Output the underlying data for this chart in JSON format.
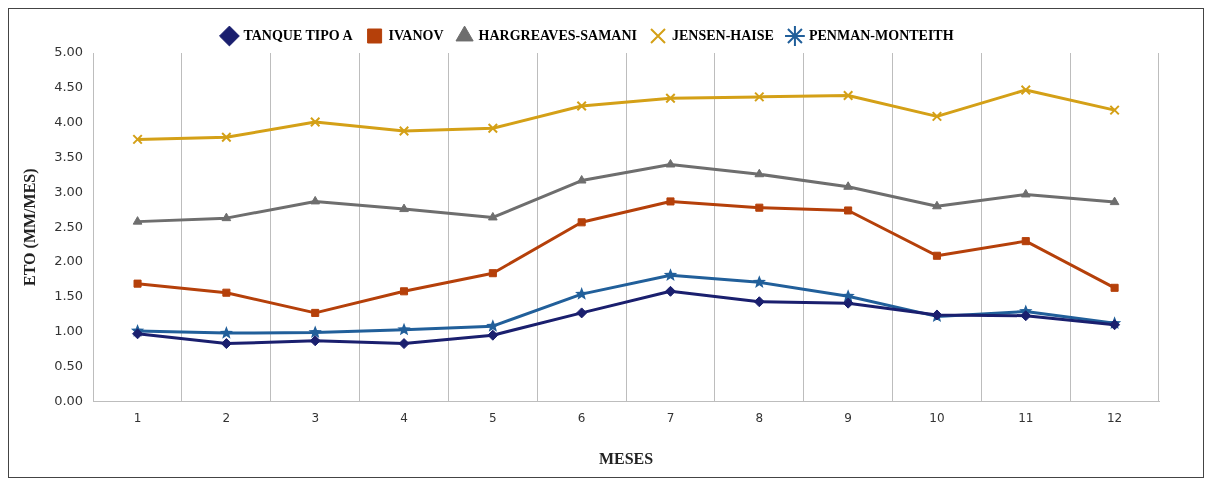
{
  "chart_data": {
    "type": "line",
    "xlabel": "MESES",
    "ylabel": "ETO (MM/MES)",
    "categories": [
      "1",
      "2",
      "3",
      "4",
      "5",
      "6",
      "7",
      "8",
      "9",
      "10",
      "11",
      "12"
    ],
    "ylim": [
      0,
      5
    ],
    "yticks": [
      {
        "value": 0,
        "label": "0.00"
      },
      {
        "value": 0.5,
        "label": "0.50"
      },
      {
        "value": 1,
        "label": "1.00"
      },
      {
        "value": 1.5,
        "label": "1.50"
      },
      {
        "value": 2,
        "label": "2.00"
      },
      {
        "value": 2.5,
        "label": "2.50"
      },
      {
        "value": 3,
        "label": "3.00"
      },
      {
        "value": 3.5,
        "label": "3.50"
      },
      {
        "value": 4,
        "label": "4.00"
      },
      {
        "value": 4.5,
        "label": "4.50"
      },
      {
        "value": 5,
        "label": "5.00"
      }
    ],
    "grid": "x",
    "legend": "top",
    "line_style": "solid",
    "series": [
      {
        "name": "TANQUE TIPO A",
        "color": "#1a1f6e",
        "marker": "diamond",
        "values": [
          0.97,
          0.83,
          0.87,
          0.83,
          0.95,
          1.27,
          1.58,
          1.43,
          1.41,
          1.24,
          1.23,
          1.1
        ]
      },
      {
        "name": "IVANOV",
        "color": "#b5400a",
        "marker": "square",
        "values": [
          1.69,
          1.56,
          1.27,
          1.58,
          1.84,
          2.57,
          2.87,
          2.78,
          2.74,
          2.09,
          2.3,
          1.63
        ]
      },
      {
        "name": "HARGREAVES-SAMANI",
        "color": "#6e6e6e",
        "marker": "triangle",
        "values": [
          2.58,
          2.63,
          2.87,
          2.76,
          2.64,
          3.17,
          3.4,
          3.26,
          3.08,
          2.8,
          2.97,
          2.86
        ]
      },
      {
        "name": "JENSEN-HAISE",
        "color": "#d4a017",
        "marker": "cross",
        "values": [
          3.76,
          3.79,
          4.01,
          3.88,
          3.92,
          4.24,
          4.35,
          4.37,
          4.39,
          4.09,
          4.47,
          4.18
        ]
      },
      {
        "name": "PENMAN-MONTEITH",
        "color": "#215f9a",
        "marker": "star",
        "values": [
          1.01,
          0.98,
          0.99,
          1.03,
          1.08,
          1.54,
          1.81,
          1.71,
          1.51,
          1.22,
          1.29,
          1.12
        ]
      }
    ]
  }
}
